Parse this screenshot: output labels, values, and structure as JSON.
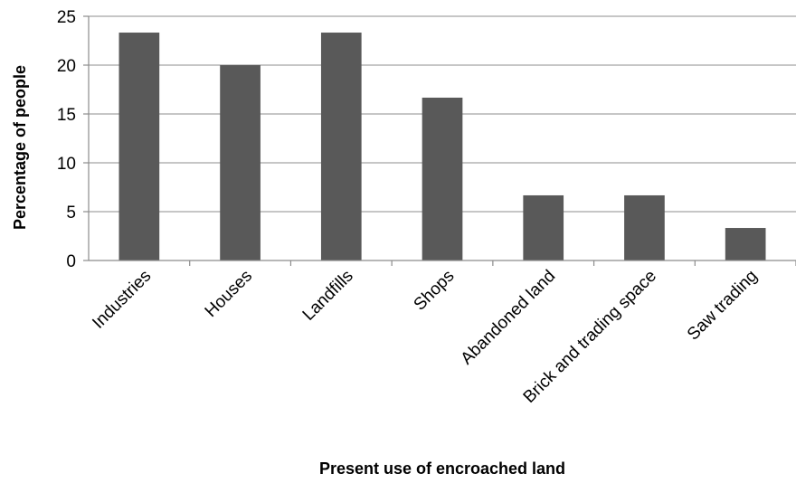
{
  "chart_data": {
    "type": "bar",
    "title": "",
    "xlabel": "Present use of encroached land",
    "ylabel": "Percentage of people",
    "categories": [
      "Industries",
      "Houses",
      "Landfills",
      "Shops",
      "Abandoned land",
      "Brick and trading space",
      "Saw trading"
    ],
    "values": [
      23.33,
      20.0,
      23.33,
      16.67,
      6.67,
      6.67,
      3.33
    ],
    "ylim": [
      0,
      25
    ],
    "yticks": [
      "0",
      "5",
      "10",
      "15",
      "20",
      "25"
    ],
    "grid": true,
    "legend": "none",
    "bar_color": "#595959"
  }
}
